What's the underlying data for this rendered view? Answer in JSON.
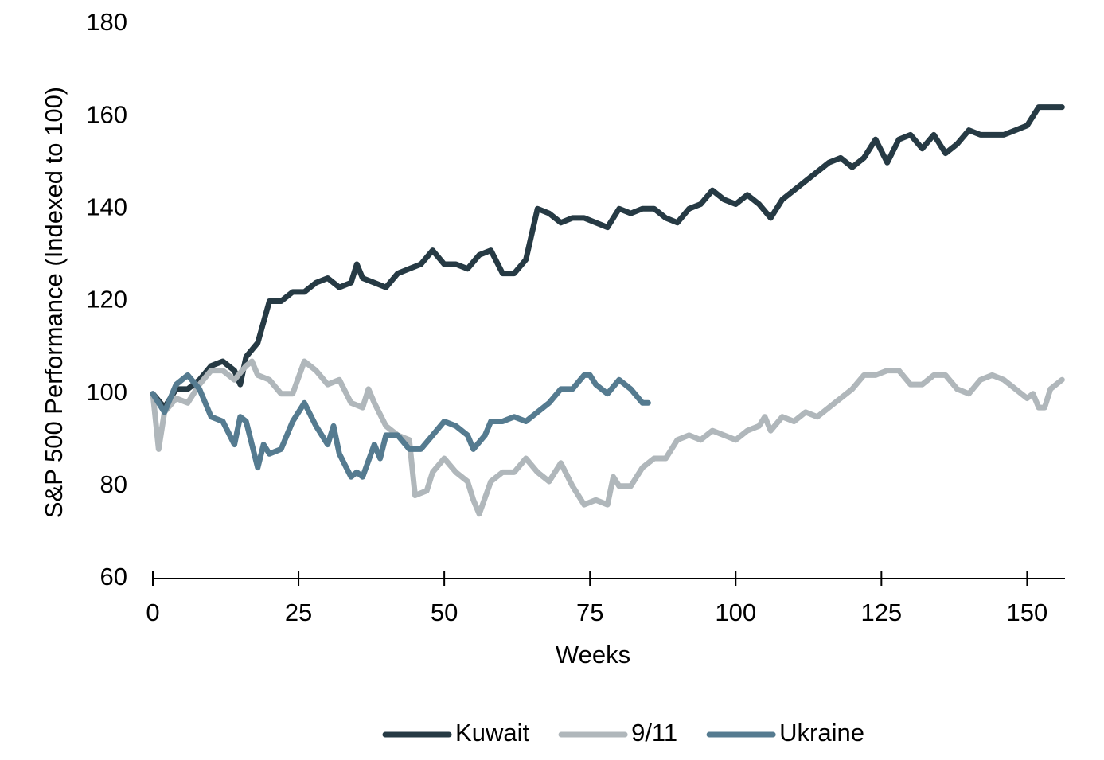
{
  "chart_data": {
    "type": "line",
    "x_label": "Weeks",
    "y_label": "S&P 500 Performance (Indexed to 100)",
    "xlim": [
      0,
      156.5
    ],
    "xticks": [
      0,
      25,
      50,
      75,
      100,
      125,
      150
    ],
    "ylim": [
      60,
      180
    ],
    "yticks": [
      60,
      80,
      100,
      120,
      140,
      160,
      180
    ],
    "grid": false,
    "legend": "bottom",
    "series": [
      {
        "name": "Kuwait",
        "color": "#263a44",
        "x": [
          0,
          2,
          4,
          6,
          8,
          10,
          12,
          14,
          15,
          16,
          18,
          20,
          22,
          24,
          26,
          28,
          30,
          32,
          34,
          35,
          36,
          38,
          40,
          42,
          44,
          46,
          48,
          50,
          52,
          54,
          56,
          58,
          60,
          62,
          64,
          66,
          68,
          70,
          72,
          74,
          76,
          78,
          80,
          82,
          84,
          86,
          88,
          90,
          92,
          94,
          96,
          98,
          100,
          102,
          104,
          106,
          108,
          110,
          112,
          114,
          116,
          118,
          120,
          122,
          124,
          126,
          128,
          130,
          132,
          134,
          136,
          138,
          140,
          142,
          144,
          146,
          148,
          150,
          152,
          154,
          156
        ],
        "values": [
          100,
          97,
          101,
          101,
          103,
          106,
          107,
          105,
          102,
          108,
          111,
          120,
          120,
          122,
          122,
          124,
          125,
          123,
          124,
          128,
          125,
          124,
          123,
          126,
          127,
          128,
          131,
          128,
          128,
          127,
          130,
          131,
          126,
          126,
          129,
          140,
          139,
          137,
          138,
          138,
          137,
          136,
          140,
          139,
          140,
          140,
          138,
          137,
          140,
          141,
          144,
          142,
          141,
          143,
          141,
          138,
          142,
          144,
          146,
          148,
          150,
          151,
          149,
          151,
          155,
          150,
          155,
          156,
          153,
          156,
          152,
          154,
          157,
          156,
          156,
          156,
          157,
          158,
          162,
          162,
          162
        ]
      },
      {
        "name": "9/11",
        "color": "#b0b7bb",
        "x": [
          0,
          1,
          2,
          4,
          6,
          8,
          10,
          12,
          14,
          16,
          17,
          18,
          20,
          22,
          24,
          26,
          28,
          30,
          32,
          34,
          36,
          37,
          38,
          40,
          42,
          44,
          45,
          47,
          48,
          50,
          52,
          54,
          55,
          56,
          58,
          60,
          62,
          64,
          66,
          68,
          70,
          72,
          74,
          76,
          78,
          79,
          80,
          82,
          84,
          86,
          88,
          90,
          92,
          94,
          96,
          98,
          100,
          102,
          104,
          105,
          106,
          108,
          110,
          112,
          114,
          116,
          118,
          120,
          122,
          124,
          126,
          128,
          130,
          132,
          134,
          136,
          138,
          140,
          142,
          144,
          146,
          148,
          150,
          151,
          152,
          153,
          154,
          156
        ],
        "values": [
          100,
          88,
          96,
          99,
          98,
          102,
          105,
          105,
          103,
          106,
          107,
          104,
          103,
          100,
          100,
          107,
          105,
          102,
          103,
          98,
          97,
          101,
          98,
          93,
          91,
          90,
          78,
          79,
          83,
          86,
          83,
          81,
          77,
          74,
          81,
          83,
          83,
          86,
          83,
          81,
          85,
          80,
          76,
          77,
          76,
          82,
          80,
          80,
          84,
          86,
          86,
          90,
          91,
          90,
          92,
          91,
          90,
          92,
          93,
          95,
          92,
          95,
          94,
          96,
          95,
          97,
          99,
          101,
          104,
          104,
          105,
          105,
          102,
          102,
          104,
          104,
          101,
          100,
          103,
          104,
          103,
          101,
          99,
          100,
          97,
          97,
          101,
          103
        ]
      },
      {
        "name": "Ukraine",
        "color": "#557b90",
        "x": [
          0,
          2,
          4,
          6,
          8,
          10,
          12,
          14,
          15,
          16,
          18,
          19,
          20,
          22,
          24,
          26,
          28,
          30,
          31,
          32,
          34,
          35,
          36,
          38,
          39,
          40,
          42,
          44,
          46,
          48,
          50,
          52,
          54,
          55,
          57,
          58,
          60,
          62,
          64,
          66,
          68,
          70,
          72,
          74,
          75,
          76,
          78,
          80,
          82,
          84,
          85
        ],
        "values": [
          100,
          96,
          102,
          104,
          101,
          95,
          94,
          89,
          95,
          94,
          84,
          89,
          87,
          88,
          94,
          98,
          93,
          89,
          93,
          87,
          82,
          83,
          82,
          89,
          86,
          91,
          91,
          88,
          88,
          91,
          94,
          93,
          91,
          88,
          91,
          94,
          94,
          95,
          94,
          96,
          98,
          101,
          101,
          104,
          104,
          102,
          100,
          103,
          101,
          98,
          98
        ]
      }
    ]
  }
}
